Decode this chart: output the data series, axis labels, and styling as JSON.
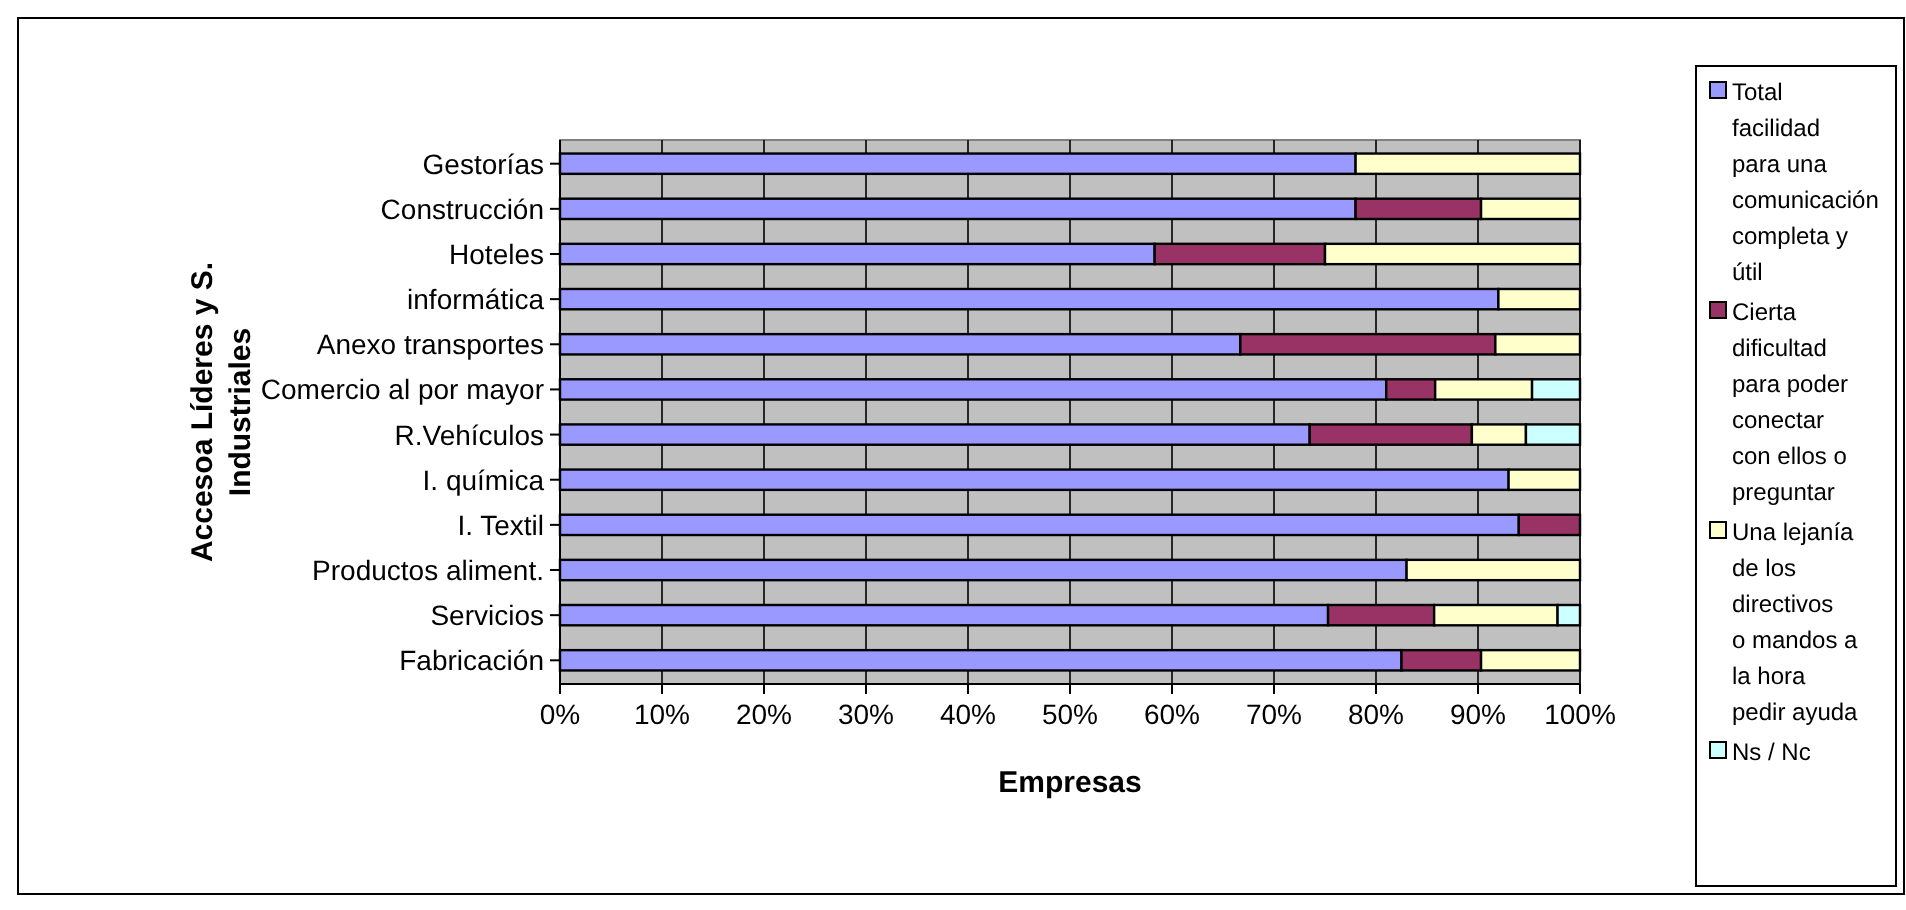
{
  "chart_data": {
    "type": "bar",
    "orientation": "horizontal",
    "stacked": true,
    "ylabel": "Accesoa Líderes y S. Industriales",
    "xlabel": "Empresas",
    "categories": [
      "Gestorías",
      "Construcción",
      "Hoteles",
      "informática",
      "Anexo transportes",
      "Comercio al por mayor",
      "R.Vehículos",
      "I. química",
      "I. Textil",
      "Productos aliment.",
      "Servicios",
      "Fabricación"
    ],
    "series": [
      {
        "name": "Total facilidad para una comunicación completa y útil",
        "color": "#9999ff",
        "values": [
          78,
          78,
          58.3,
          92,
          66.7,
          81,
          73.5,
          93,
          94,
          83,
          75.3,
          82.5
        ]
      },
      {
        "name": "Cierta dificultad para poder conectar con ellos o preguntar",
        "color": "#993366",
        "values": [
          null,
          12.3,
          16.7,
          null,
          25,
          4.8,
          15.9,
          null,
          6,
          null,
          10.4,
          7.8
        ]
      },
      {
        "name": "Una lejanía de los directivos o mandos a la hora pedir ayuda",
        "color": "#ffffcc",
        "values": [
          22,
          9.7,
          25,
          8,
          8.3,
          9.5,
          5.3,
          7,
          null,
          17,
          12.1,
          9.7
        ]
      },
      {
        "name": "Ns / Nc",
        "color": "#ccffff",
        "values": [
          null,
          null,
          null,
          null,
          null,
          4.7,
          5.3,
          null,
          null,
          null,
          2.2,
          null
        ]
      }
    ],
    "xlim": [
      0,
      100
    ],
    "xticks": [
      {
        "value": 0,
        "label": "0%"
      },
      {
        "value": 10,
        "label": "10%"
      },
      {
        "value": 20,
        "label": "20%"
      },
      {
        "value": 30,
        "label": "30%"
      },
      {
        "value": 40,
        "label": "40%"
      },
      {
        "value": 50,
        "label": "50%"
      },
      {
        "value": 60,
        "label": "60%"
      },
      {
        "value": 70,
        "label": "70%"
      },
      {
        "value": 80,
        "label": "80%"
      },
      {
        "value": 90,
        "label": "90%"
      },
      {
        "value": 100,
        "label": "100%"
      }
    ],
    "grid": "x",
    "legend": "right"
  }
}
